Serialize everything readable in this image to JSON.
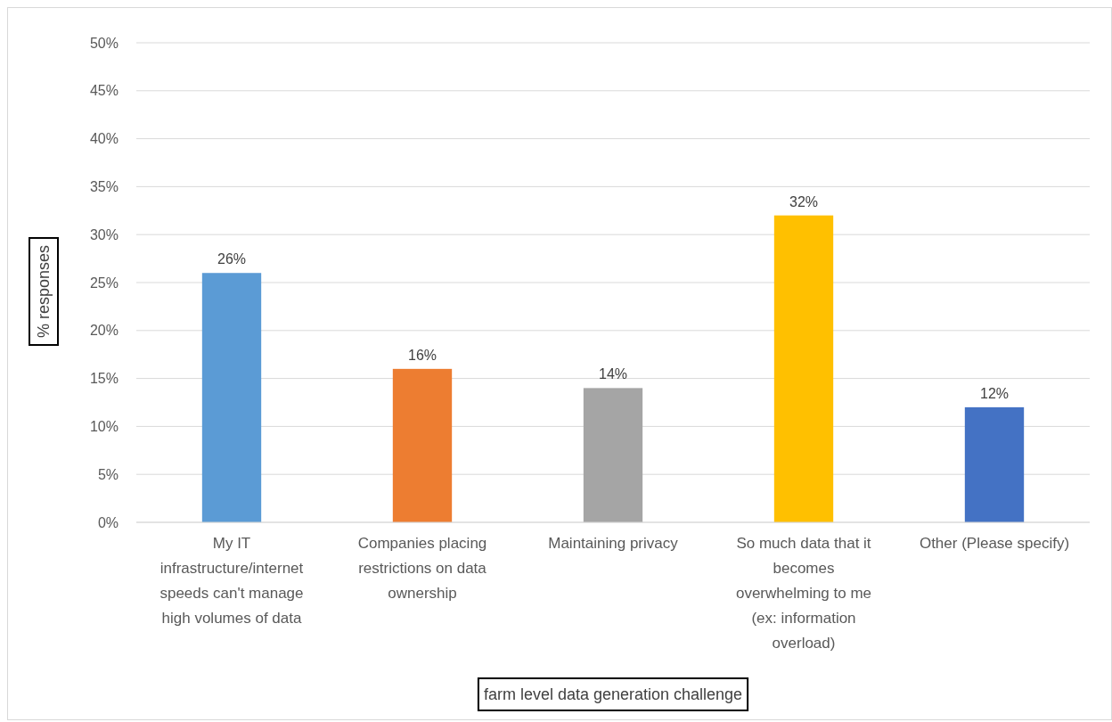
{
  "chart_data": {
    "type": "bar",
    "xlabel": "farm level data generation challenge",
    "ylabel": "% responses",
    "categories": [
      "My IT infrastructure/internet speeds can't manage high volumes of data",
      "Companies placing restrictions on data ownership",
      "Maintaining privacy",
      "So much data that it becomes overwhelming to me (ex: information overload)",
      "Other (Please specify)"
    ],
    "values": [
      26,
      16,
      14,
      32,
      12
    ],
    "colors": [
      "#5b9bd5",
      "#ed7d31",
      "#a5a5a5",
      "#ffc000",
      "#4472c4"
    ],
    "value_labels": [
      "26%",
      "16%",
      "14%",
      "32%",
      "12%"
    ],
    "ylim": [
      0,
      50
    ],
    "yticks": [
      {
        "value": 0,
        "label": "0%"
      },
      {
        "value": 5,
        "label": "5%"
      },
      {
        "value": 10,
        "label": "10%"
      },
      {
        "value": 15,
        "label": "15%"
      },
      {
        "value": 20,
        "label": "20%"
      },
      {
        "value": 25,
        "label": "25%"
      },
      {
        "value": 30,
        "label": "30%"
      },
      {
        "value": 35,
        "label": "35%"
      },
      {
        "value": 40,
        "label": "40%"
      },
      {
        "value": 45,
        "label": "45%"
      },
      {
        "value": 50,
        "label": "50%"
      }
    ],
    "grid": "y"
  }
}
